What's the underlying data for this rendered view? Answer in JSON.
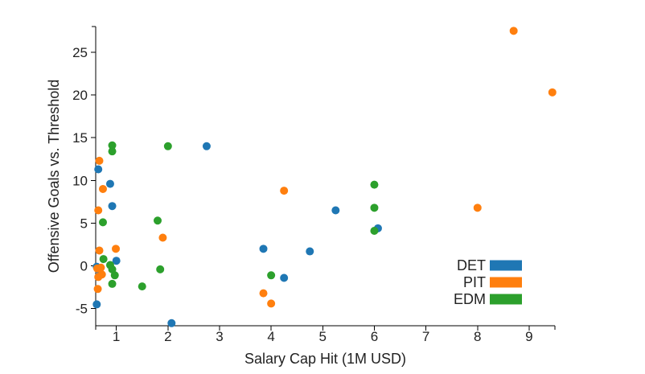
{
  "chart_data": {
    "type": "scatter",
    "title": "",
    "xlabel": "Salary Cap Hit (1M USD)",
    "ylabel": "Offensive Goals vs. Threshold",
    "xlim": [
      0.6,
      9.5
    ],
    "ylim": [
      -7,
      28
    ],
    "x_ticks": [
      1,
      2,
      3,
      4,
      5,
      6,
      7,
      8,
      9
    ],
    "y_ticks": [
      -5,
      0,
      5,
      10,
      15,
      20,
      25
    ],
    "x_tick_labels": [
      "1",
      "2",
      "3",
      "4",
      "5",
      "6",
      "7",
      "8",
      "9"
    ],
    "y_tick_labels": [
      "-5",
      "0",
      "5",
      "10",
      "15",
      "20",
      "25"
    ],
    "grid": false,
    "legend_position": "bottom-right",
    "series": [
      {
        "name": "DET",
        "color": "#1f77b4",
        "points": [
          {
            "x": 0.65,
            "y": 11.3
          },
          {
            "x": 0.88,
            "y": 9.6
          },
          {
            "x": 0.92,
            "y": 7.0
          },
          {
            "x": 0.62,
            "y": -0.1
          },
          {
            "x": 0.65,
            "y": -0.4
          },
          {
            "x": 1.0,
            "y": 0.6
          },
          {
            "x": 0.62,
            "y": -4.5
          },
          {
            "x": 2.07,
            "y": -6.7
          },
          {
            "x": 2.75,
            "y": 14.0
          },
          {
            "x": 3.85,
            "y": 2.0
          },
          {
            "x": 4.25,
            "y": -1.4
          },
          {
            "x": 4.75,
            "y": 1.7
          },
          {
            "x": 5.25,
            "y": 6.5
          },
          {
            "x": 6.07,
            "y": 4.4
          }
        ]
      },
      {
        "name": "PIT",
        "color": "#ff7f0e",
        "points": [
          {
            "x": 0.67,
            "y": 12.3
          },
          {
            "x": 0.74,
            "y": 9.0
          },
          {
            "x": 0.65,
            "y": 6.5
          },
          {
            "x": 0.67,
            "y": 1.8
          },
          {
            "x": 0.99,
            "y": 2.0
          },
          {
            "x": 0.63,
            "y": -0.3
          },
          {
            "x": 0.7,
            "y": -0.2
          },
          {
            "x": 0.72,
            "y": -1.0
          },
          {
            "x": 0.65,
            "y": -1.3
          },
          {
            "x": 0.64,
            "y": -2.7
          },
          {
            "x": 1.9,
            "y": 3.3
          },
          {
            "x": 3.85,
            "y": -3.2
          },
          {
            "x": 4.0,
            "y": -4.4
          },
          {
            "x": 4.25,
            "y": 8.8
          },
          {
            "x": 8.0,
            "y": 6.8
          },
          {
            "x": 8.7,
            "y": 27.5
          },
          {
            "x": 9.45,
            "y": 20.3
          }
        ]
      },
      {
        "name": "EDM",
        "color": "#2ca02c",
        "points": [
          {
            "x": 0.92,
            "y": 14.1
          },
          {
            "x": 0.92,
            "y": 13.4
          },
          {
            "x": 0.74,
            "y": 5.1
          },
          {
            "x": 0.75,
            "y": 0.8
          },
          {
            "x": 0.88,
            "y": 0.1
          },
          {
            "x": 0.92,
            "y": -0.4
          },
          {
            "x": 0.97,
            "y": -1.1
          },
          {
            "x": 0.92,
            "y": -2.1
          },
          {
            "x": 1.5,
            "y": -2.4
          },
          {
            "x": 1.8,
            "y": 5.3
          },
          {
            "x": 1.85,
            "y": -0.4
          },
          {
            "x": 2.0,
            "y": 14.0
          },
          {
            "x": 4.0,
            "y": -1.1
          },
          {
            "x": 6.0,
            "y": 9.5
          },
          {
            "x": 6.0,
            "y": 6.8
          },
          {
            "x": 6.0,
            "y": 4.1
          }
        ]
      }
    ]
  }
}
